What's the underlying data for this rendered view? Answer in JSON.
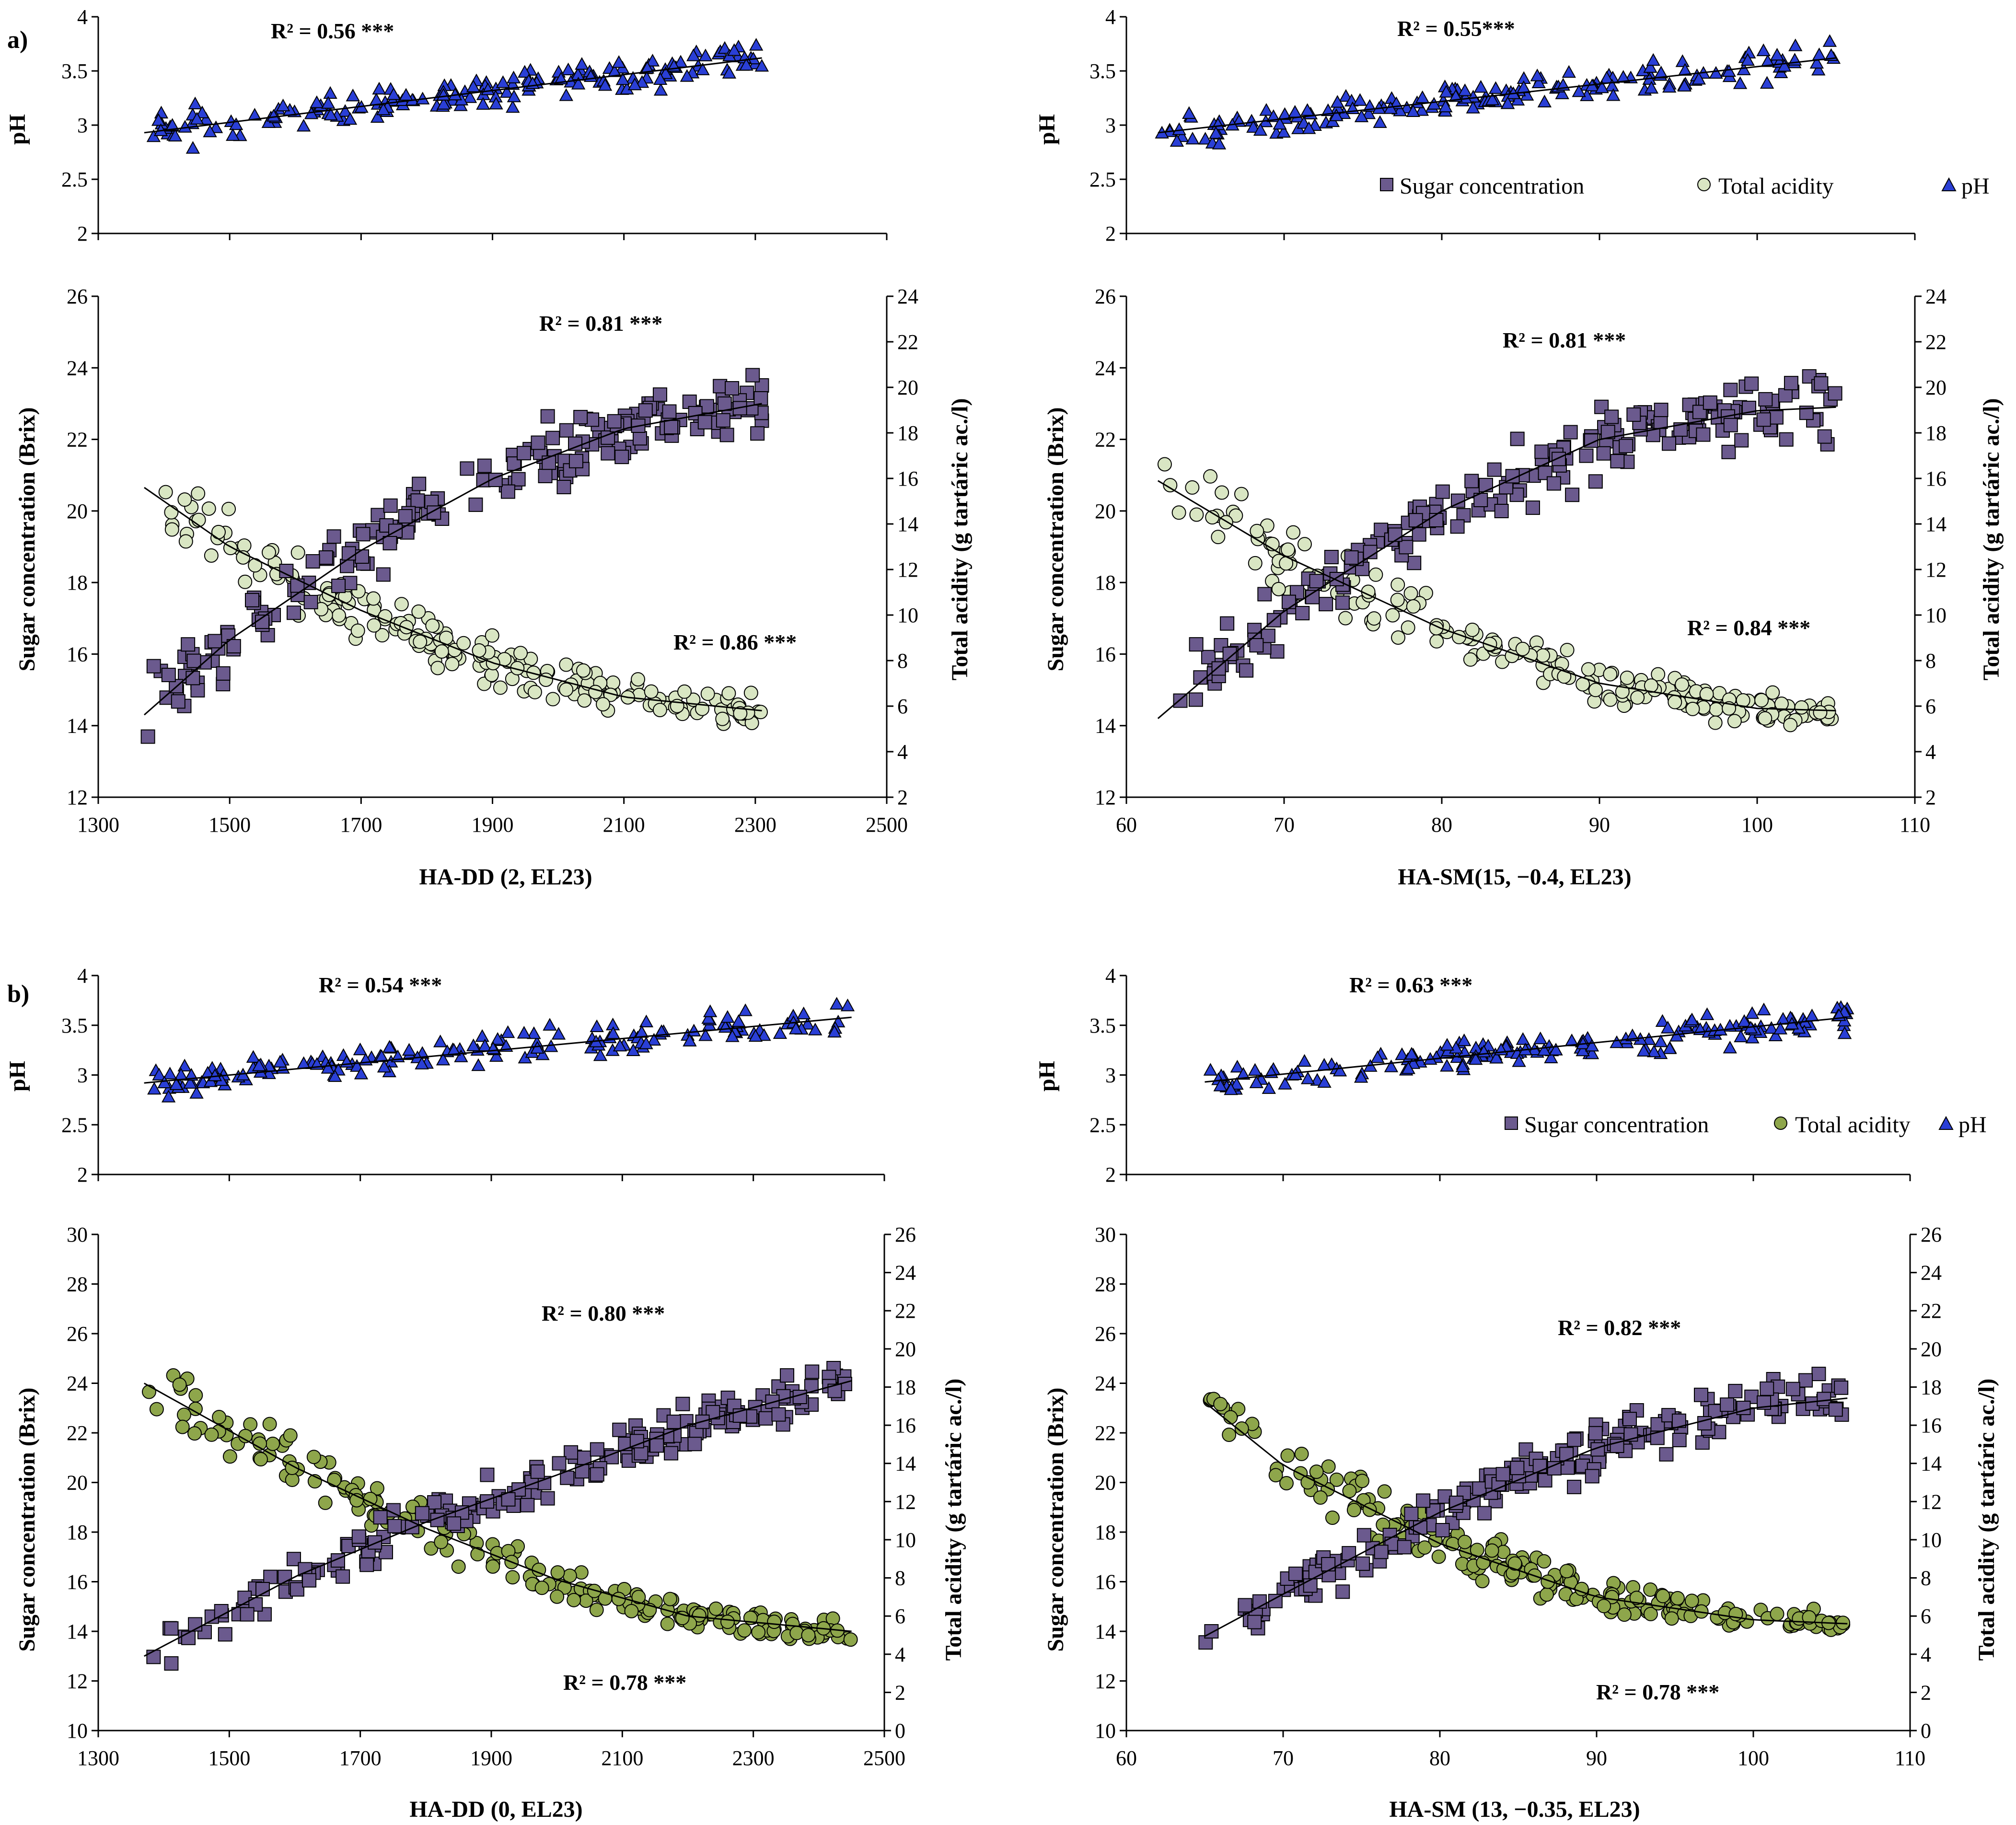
{
  "figure": {
    "panel_labels": [
      "a)",
      "b)"
    ],
    "legend_a": {
      "items": [
        "Sugar concentration",
        "Total acidity",
        "pH"
      ]
    },
    "legend_b": {
      "items": [
        "Sugar concentration",
        "Total acidity",
        "pH"
      ]
    }
  },
  "colors": {
    "sugar": "#6b5a8e",
    "acidity_a": "#d9e6c3",
    "acidity_b": "#8ea64b",
    "ph": "#2a3fd6"
  },
  "chart_data": [
    {
      "id": "a-left",
      "type": "scatter",
      "xlabel": "HA-DD (2, EL23)",
      "xlim": [
        1300,
        2500
      ],
      "xticks": [
        1300,
        1500,
        1700,
        1900,
        2100,
        2300,
        2500
      ],
      "ph": {
        "ylabel": "pH",
        "ylim": [
          2,
          4
        ],
        "yticks": [
          2,
          2.5,
          3,
          3.5,
          4
        ],
        "r2": "R² = 0.56 ***",
        "n": 180,
        "trend": [
          [
            1370,
            2.93
          ],
          [
            2310,
            3.62
          ]
        ]
      },
      "main": {
        "ylabel": "Sugar concentration (Brix)",
        "ylim": [
          12,
          26
        ],
        "yticks": [
          12,
          14,
          16,
          18,
          20,
          22,
          24,
          26
        ],
        "y2label": "Total acidity (g tartáric ac./l)",
        "y2lim": [
          2,
          24
        ],
        "y2ticks": [
          2,
          4,
          6,
          8,
          10,
          12,
          14,
          16,
          18,
          20,
          22,
          24
        ],
        "sugar_r2": "R² = 0.81 ***",
        "acid_r2": "R² = 0.86 ***",
        "sugar_trend": [
          [
            1370,
            14.3
          ],
          [
            1500,
            16.4
          ],
          [
            1700,
            18.9
          ],
          [
            1900,
            20.9
          ],
          [
            2100,
            22.3
          ],
          [
            2310,
            23.0
          ]
        ],
        "acid_trend": [
          [
            1370,
            15.6
          ],
          [
            1500,
            13.0
          ],
          [
            1700,
            10.2
          ],
          [
            1900,
            7.9
          ],
          [
            2100,
            6.4
          ],
          [
            2310,
            5.8
          ]
        ]
      }
    },
    {
      "id": "a-right",
      "type": "scatter",
      "xlabel": "HA-SM(15, −0.4, EL23)",
      "xlim": [
        60,
        110
      ],
      "xticks": [
        60,
        70,
        80,
        90,
        100,
        110
      ],
      "ph": {
        "ylabel": "pH",
        "ylim": [
          2,
          4
        ],
        "yticks": [
          2,
          2.5,
          3,
          3.5,
          4
        ],
        "r2": "R² = 0.55***",
        "n": 180,
        "trend": [
          [
            62,
            2.93
          ],
          [
            105,
            3.62
          ]
        ]
      },
      "main": {
        "ylabel": "Sugar concentration (Brix)",
        "ylim": [
          12,
          26
        ],
        "yticks": [
          12,
          14,
          16,
          18,
          20,
          22,
          24,
          26
        ],
        "y2label": "Total acidity (g tartáric ac./l)",
        "y2lim": [
          2,
          24
        ],
        "y2ticks": [
          2,
          4,
          6,
          8,
          10,
          12,
          14,
          16,
          18,
          20,
          22,
          24
        ],
        "sugar_r2": "R² = 0.81 ***",
        "acid_r2": "R² = 0.84 ***",
        "sugar_trend": [
          [
            62,
            14.2
          ],
          [
            70,
            17.2
          ],
          [
            80,
            20.0
          ],
          [
            90,
            22.0
          ],
          [
            100,
            22.8
          ],
          [
            105,
            22.9
          ]
        ],
        "acid_trend": [
          [
            62,
            15.9
          ],
          [
            70,
            12.6
          ],
          [
            80,
            9.4
          ],
          [
            90,
            7.0
          ],
          [
            100,
            5.9
          ],
          [
            105,
            5.8
          ]
        ]
      }
    },
    {
      "id": "b-left",
      "type": "scatter",
      "xlabel": "HA-DD (0, EL23)",
      "xlim": [
        1300,
        2500
      ],
      "xticks": [
        1300,
        1500,
        1700,
        1900,
        2100,
        2300,
        2500
      ],
      "ph": {
        "ylabel": "pH",
        "ylim": [
          2,
          4
        ],
        "yticks": [
          2,
          2.5,
          3,
          3.5,
          4
        ],
        "r2": "R² = 0.54 ***",
        "n": 170,
        "trend": [
          [
            1370,
            2.92
          ],
          [
            2450,
            3.58
          ]
        ]
      },
      "main": {
        "ylabel": "Sugar concentration (Brix)",
        "ylim": [
          10,
          30
        ],
        "yticks": [
          10,
          12,
          14,
          16,
          18,
          20,
          22,
          24,
          26,
          28,
          30
        ],
        "y2label": "Total acidity (g tartáric ac./l)",
        "y2lim": [
          0,
          26
        ],
        "y2ticks": [
          0,
          2,
          4,
          6,
          8,
          10,
          12,
          14,
          16,
          18,
          20,
          22,
          24,
          26
        ],
        "sugar_r2": "R² = 0.80 ***",
        "acid_r2": "R² = 0.78 ***",
        "sugar_trend": [
          [
            1370,
            13.0
          ],
          [
            1600,
            16.2
          ],
          [
            1800,
            18.4
          ],
          [
            2000,
            20.3
          ],
          [
            2200,
            22.3
          ],
          [
            2450,
            24.1
          ]
        ],
        "acid_trend": [
          [
            1370,
            18.2
          ],
          [
            1600,
            13.8
          ],
          [
            1800,
            10.6
          ],
          [
            2000,
            7.9
          ],
          [
            2200,
            6.0
          ],
          [
            2450,
            5.2
          ]
        ]
      }
    },
    {
      "id": "b-right",
      "type": "scatter",
      "xlabel": "HA-SM (13, −0.35, EL23)",
      "xlim": [
        60,
        110
      ],
      "xticks": [
        60,
        70,
        80,
        90,
        100,
        110
      ],
      "ph": {
        "ylabel": "pH",
        "ylim": [
          2,
          4
        ],
        "yticks": [
          2,
          2.5,
          3,
          3.5,
          4
        ],
        "r2": "R² = 0.63 ***",
        "n": 170,
        "trend": [
          [
            65,
            2.93
          ],
          [
            106,
            3.58
          ]
        ]
      },
      "main": {
        "ylabel": "Sugar concentration (Brix)",
        "ylim": [
          10,
          30
        ],
        "yticks": [
          10,
          12,
          14,
          16,
          18,
          20,
          22,
          24,
          26,
          28,
          30
        ],
        "y2label": "Total acidity (g tartáric ac./l)",
        "y2lim": [
          0,
          26
        ],
        "y2ticks": [
          0,
          2,
          4,
          6,
          8,
          10,
          12,
          14,
          16,
          18,
          20,
          22,
          24,
          26
        ],
        "sugar_r2": "R² = 0.82 ***",
        "acid_r2": "R² = 0.78 ***",
        "sugar_trend": [
          [
            65,
            13.8
          ],
          [
            70,
            15.5
          ],
          [
            80,
            18.8
          ],
          [
            90,
            21.4
          ],
          [
            100,
            23.0
          ],
          [
            106,
            23.4
          ]
        ],
        "acid_trend": [
          [
            65,
            17.2
          ],
          [
            70,
            13.9
          ],
          [
            80,
            9.8
          ],
          [
            90,
            7.0
          ],
          [
            100,
            5.8
          ],
          [
            106,
            5.6
          ]
        ]
      }
    }
  ]
}
